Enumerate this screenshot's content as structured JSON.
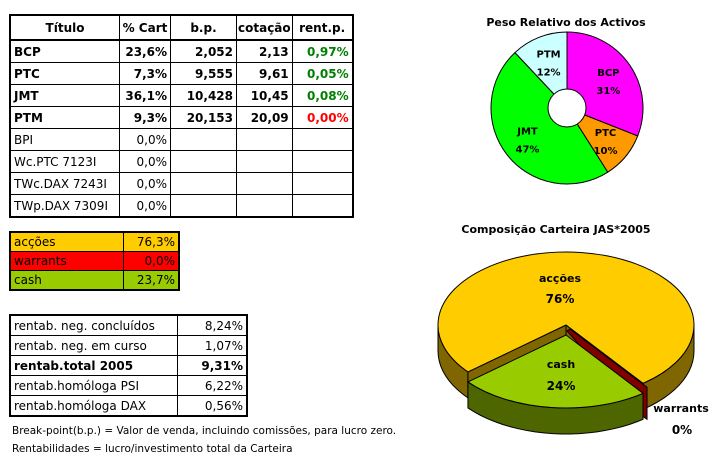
{
  "holdings": {
    "headers": [
      "Título",
      "% Cart",
      "b.p.",
      "cotação",
      "rent.p."
    ],
    "rows": [
      {
        "titulo": "BCP",
        "cart": "23,6%",
        "bp": "2,052",
        "cotacao": "2,13",
        "rent": "0,97%",
        "bold": true,
        "rent_color": "#008000"
      },
      {
        "titulo": "PTC",
        "cart": "7,3%",
        "bp": "9,555",
        "cotacao": "9,61",
        "rent": "0,05%",
        "bold": true,
        "rent_color": "#008000"
      },
      {
        "titulo": "JMT",
        "cart": "36,1%",
        "bp": "10,428",
        "cotacao": "10,45",
        "rent": "0,08%",
        "bold": true,
        "rent_color": "#008000"
      },
      {
        "titulo": "PTM",
        "cart": "9,3%",
        "bp": "20,153",
        "cotacao": "20,09",
        "rent": "0,00%",
        "bold": true,
        "rent_color": "#ff0000"
      },
      {
        "titulo": "BPI",
        "cart": "0,0%",
        "bp": "",
        "cotacao": "",
        "rent": "",
        "bold": false
      },
      {
        "titulo": "Wc.PTC 7123I",
        "cart": "0,0%",
        "bp": "",
        "cotacao": "",
        "rent": "",
        "bold": false
      },
      {
        "titulo": "TWc.DAX 7243I",
        "cart": "0,0%",
        "bp": "",
        "cotacao": "",
        "rent": "",
        "bold": false
      },
      {
        "titulo": "TWp.DAX 7309I",
        "cart": "0,0%",
        "bp": "",
        "cotacao": "",
        "rent": "",
        "bold": false
      }
    ]
  },
  "allocation": [
    {
      "label": "acções",
      "value": "76,3%",
      "color": "#ffcc00"
    },
    {
      "label": "warrants",
      "value": "0,0%",
      "color": "#ff0000"
    },
    {
      "label": "cash",
      "value": "23,7%",
      "color": "#99cc00"
    }
  ],
  "returns": [
    {
      "label": "rentab. neg. concluídos",
      "value": "8,24%",
      "bold": false
    },
    {
      "label": "rentab. neg. em curso",
      "value": "1,07%",
      "bold": false
    },
    {
      "label": "rentab.total 2005",
      "value": "9,31%",
      "bold": true
    },
    {
      "label": "rentab.homóloga PSI",
      "value": "6,22%",
      "bold": false
    },
    {
      "label": "rentab.homóloga DAX",
      "value": "0,56%",
      "bold": false
    }
  ],
  "notes": [
    "Break-point(b.p.) = Valor de venda, incluindo comissões, para lucro zero.",
    "Rentabilidades = lucro/investimento total da Carteira"
  ],
  "chart_data": [
    {
      "type": "pie",
      "subtype": "doughnut",
      "title": "Peso Relativo dos Activos",
      "categories": [
        "BCP",
        "PTC",
        "JMT",
        "PTM"
      ],
      "values": [
        31,
        10,
        47,
        12
      ],
      "labels": [
        "31%",
        "10%",
        "47%",
        "12%"
      ],
      "colors": [
        "#ff00ff",
        "#ff9900",
        "#00ff00",
        "#ccffff"
      ]
    },
    {
      "type": "pie",
      "subtype": "3d-exploded",
      "title": "Composição Carteira JAS*2005",
      "categories": [
        "acções",
        "cash",
        "warrants"
      ],
      "values": [
        76,
        24,
        0
      ],
      "labels": [
        "76%",
        "24%",
        "0%"
      ],
      "colors": [
        "#ffcc00",
        "#99cc00",
        "#800000"
      ]
    }
  ]
}
